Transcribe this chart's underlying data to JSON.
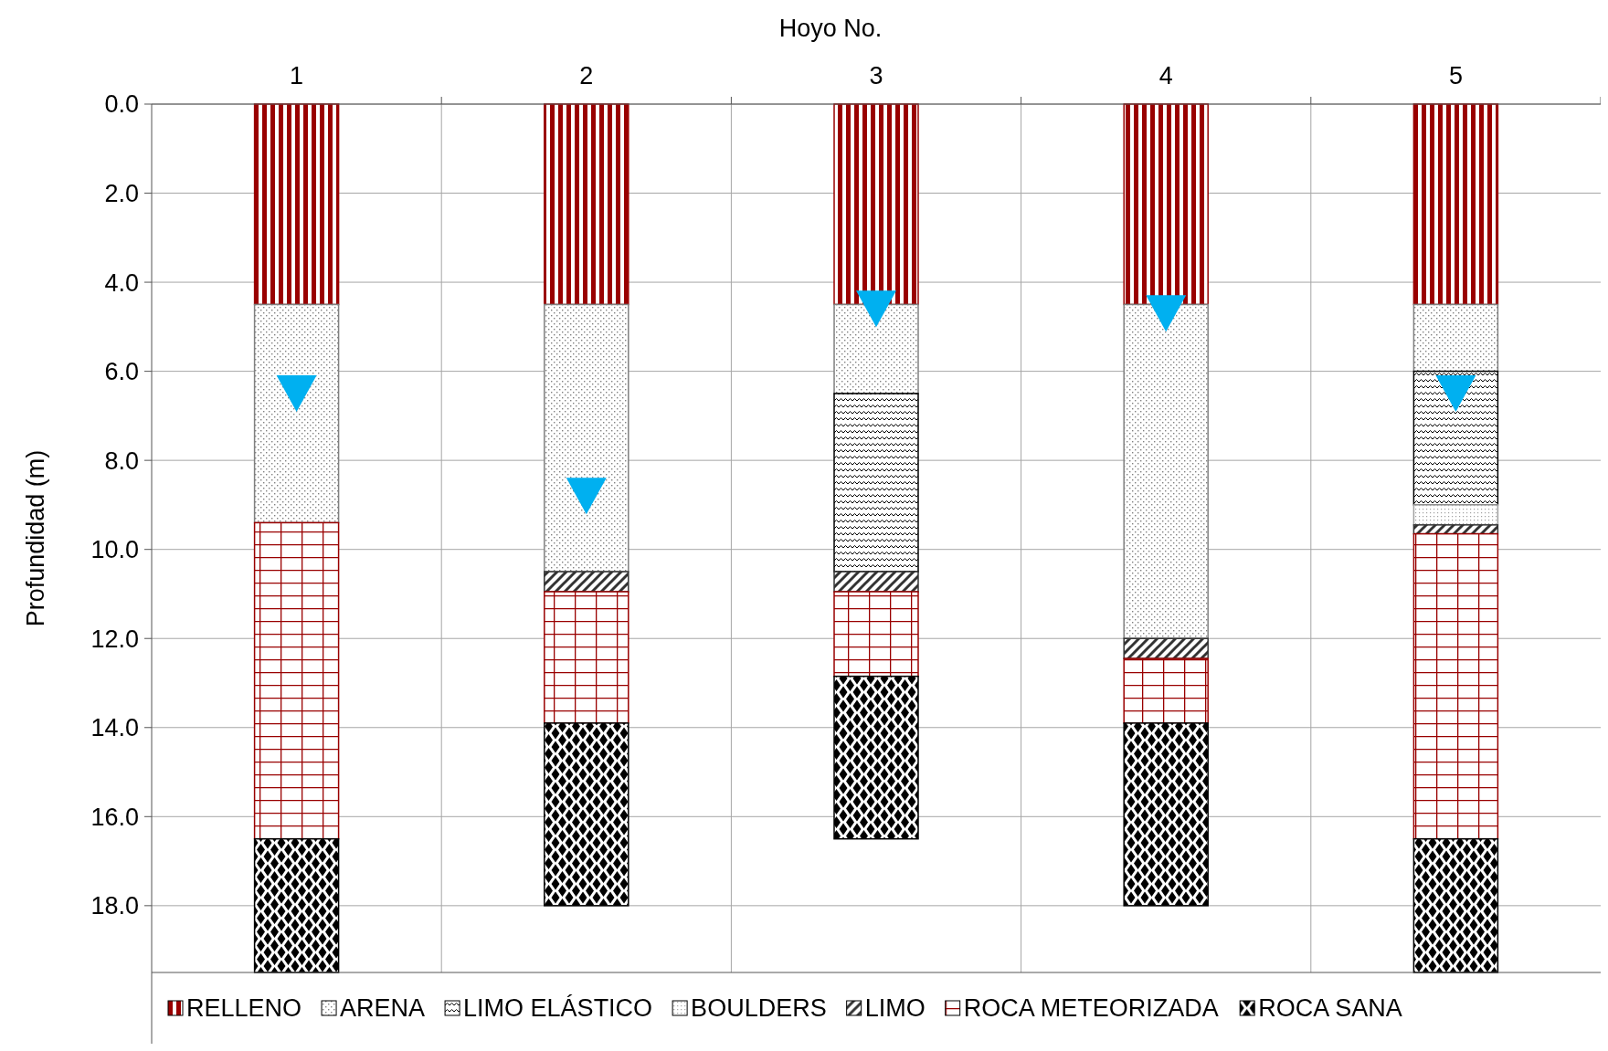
{
  "chart_data": {
    "type": "bar",
    "stacked": true,
    "xlabel": "Hoyo No.",
    "ylabel": "Profundidad (m)",
    "categories": [
      "1",
      "2",
      "3",
      "4",
      "5"
    ],
    "ylim": [
      19.5,
      0
    ],
    "yticks": [
      {
        "value": 0,
        "label": "0.0"
      },
      {
        "value": 2,
        "label": "2.0"
      },
      {
        "value": 4,
        "label": "4.0"
      },
      {
        "value": 6,
        "label": "6.0"
      },
      {
        "value": 8,
        "label": "8.0"
      },
      {
        "value": 10,
        "label": "10.0"
      },
      {
        "value": 12,
        "label": "12.0"
      },
      {
        "value": 14,
        "label": "14.0"
      },
      {
        "value": 16,
        "label": "16.0"
      },
      {
        "value": 18,
        "label": "18.0"
      }
    ],
    "grid": true,
    "legend": "bottom",
    "marker": "triangle",
    "series": [
      {
        "name": "RELLENO",
        "color": "#990000",
        "values": [
          4.5,
          4.5,
          4.5,
          4.5,
          4.5
        ]
      },
      {
        "name": "ARENA",
        "color": "#808080",
        "values": [
          4.9,
          6.0,
          2.0,
          7.5,
          1.5
        ]
      },
      {
        "name": "LIMO ELÁSTICO",
        "color": "#000000",
        "values": [
          null,
          null,
          4.0,
          null,
          3.0
        ]
      },
      {
        "name": "BOULDERS",
        "color": "#a0a0a0",
        "values": [
          null,
          null,
          null,
          null,
          0.45
        ]
      },
      {
        "name": "LIMO",
        "color": "#333333",
        "values": [
          null,
          0.45,
          0.45,
          0.45,
          0.2
        ]
      },
      {
        "name": "ROCA METEORIZADA",
        "color": "#990000",
        "values": [
          7.1,
          2.95,
          1.9,
          1.45,
          6.85
        ]
      },
      {
        "name": "ROCA SANA",
        "color": "#000000",
        "values": [
          3.0,
          4.1,
          3.65,
          4.1,
          3.0
        ]
      },
      {
        "type": "scatter",
        "color": "#00b0f0",
        "x": [
          "1",
          "2",
          "3",
          "4",
          "5"
        ],
        "values": [
          6.5,
          8.8,
          4.6,
          4.7,
          6.5
        ]
      }
    ]
  }
}
